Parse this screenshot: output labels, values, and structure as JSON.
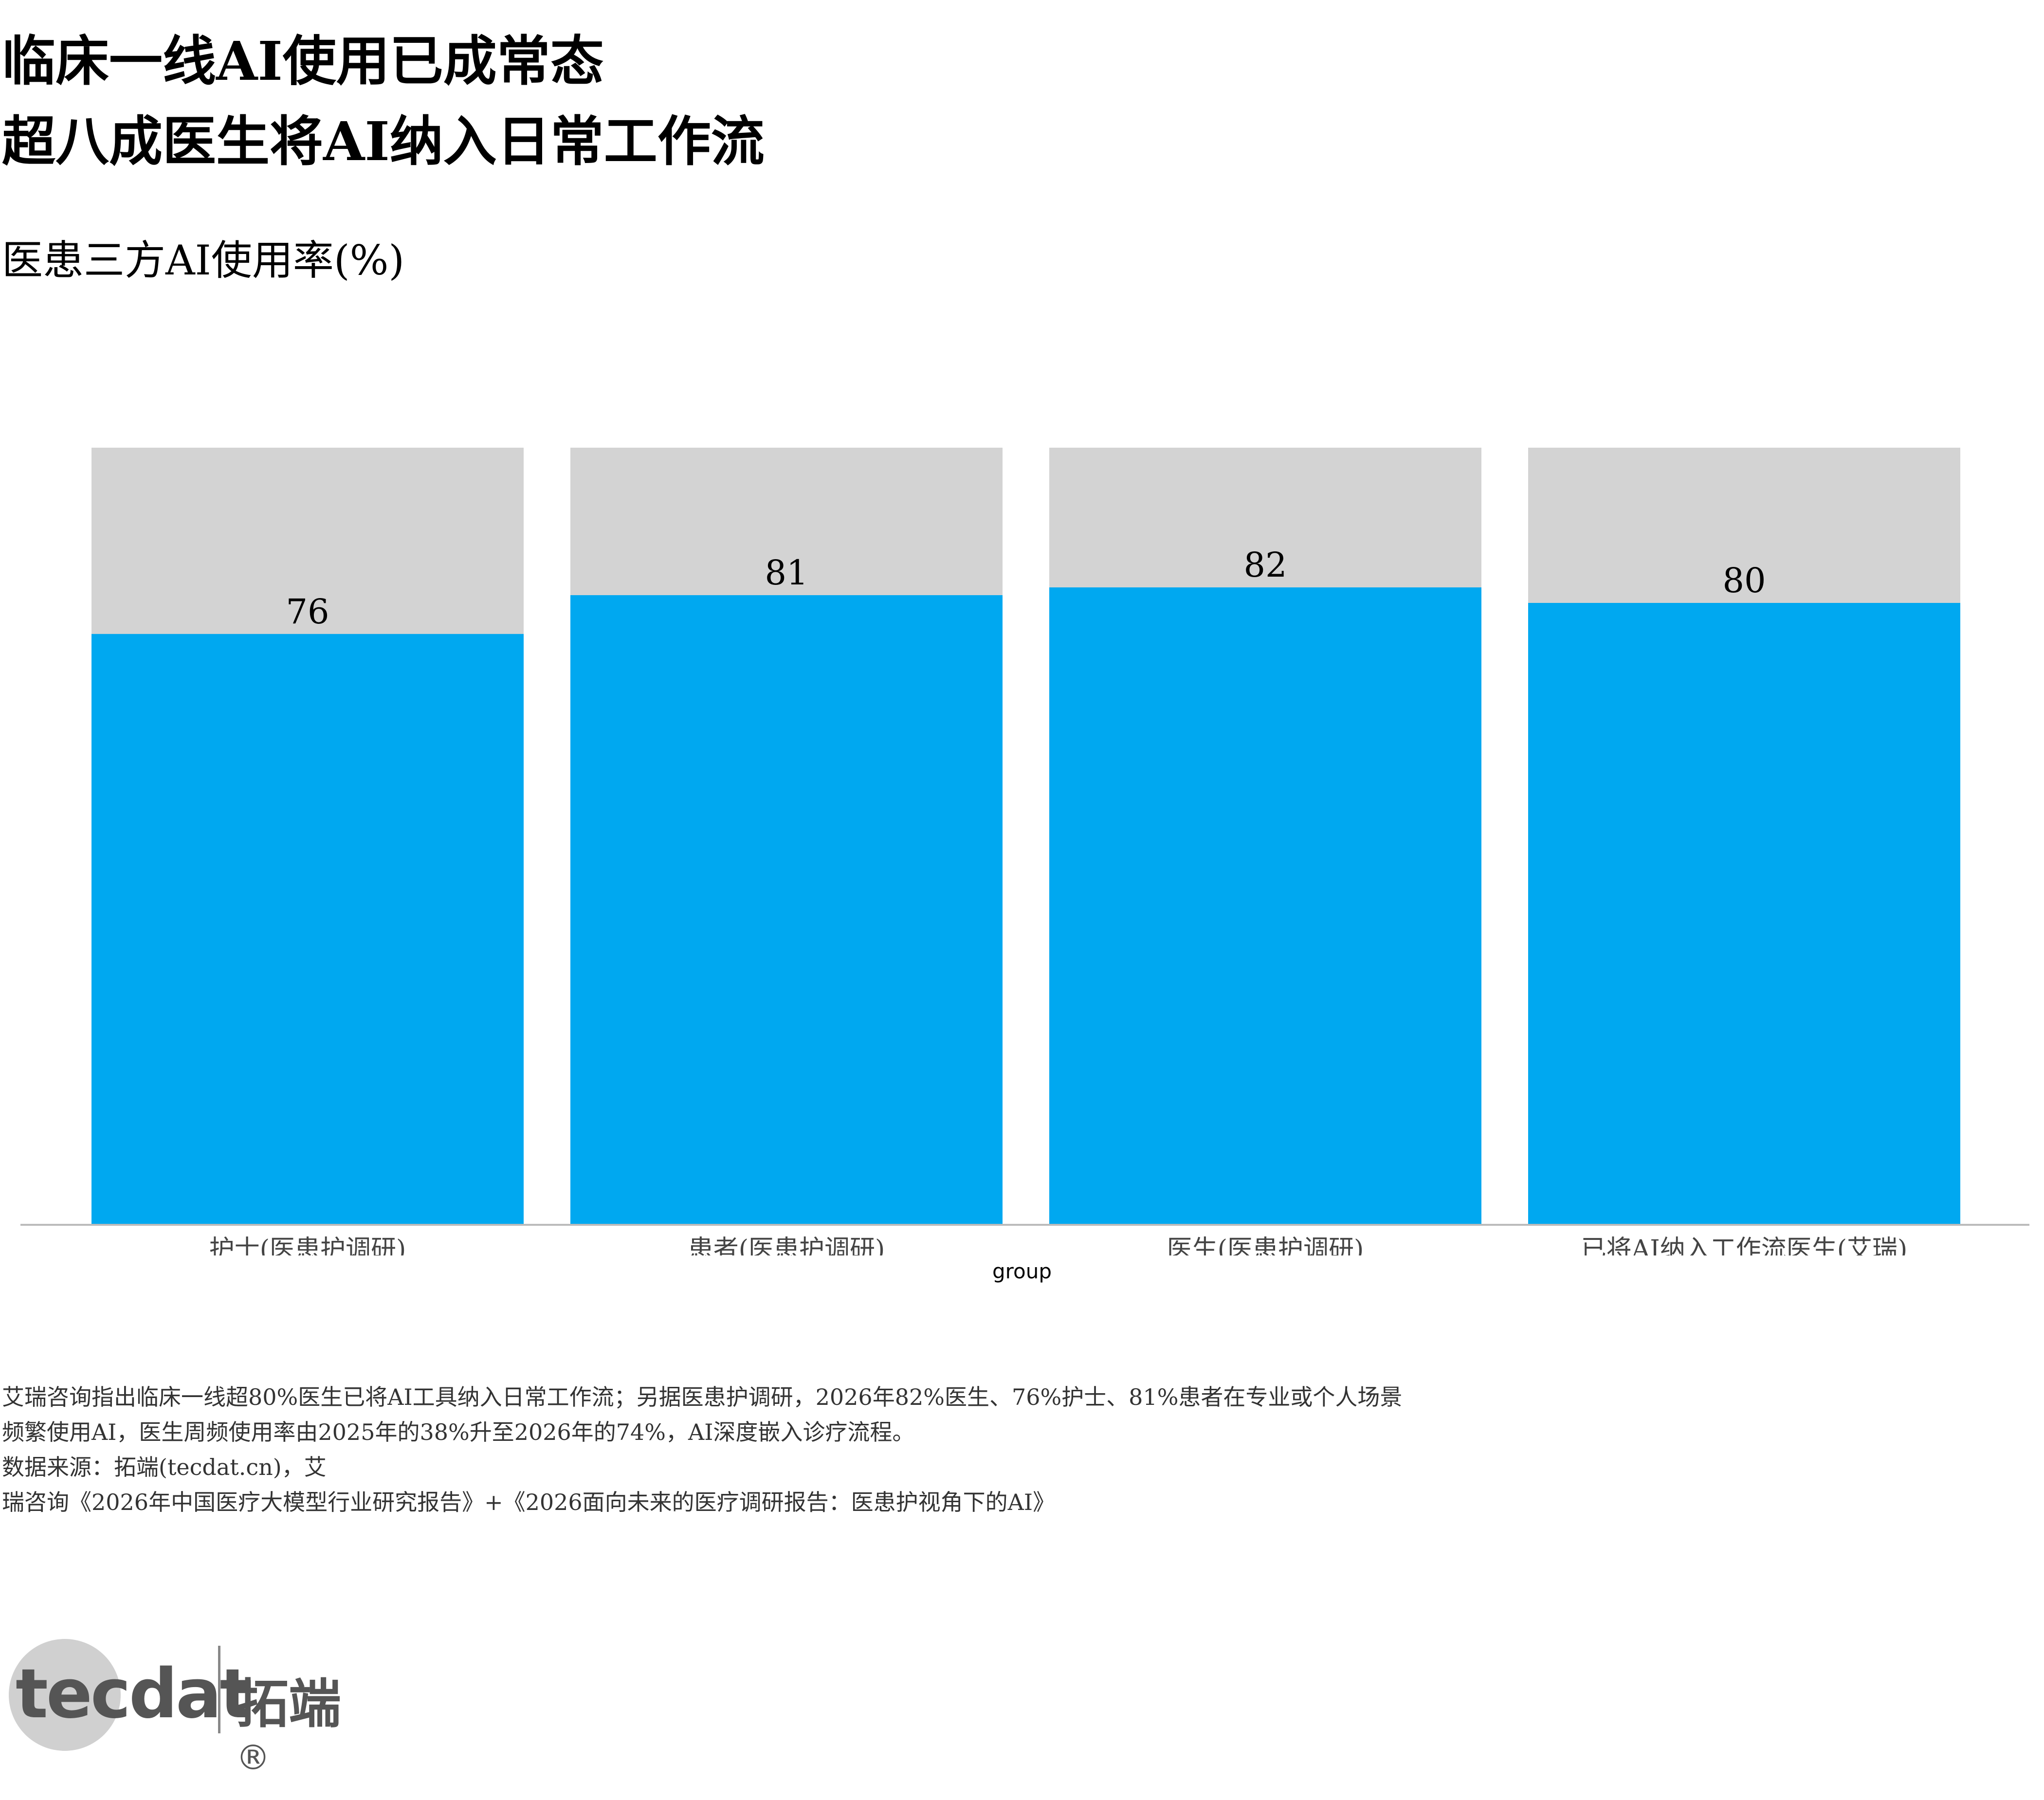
{
  "header": {
    "title_line1": "临床一线AI使用已成常态",
    "title_line2": "超八成医生将AI纳入日常工作流"
  },
  "chart_data": {
    "type": "bar",
    "subtitle": "医患三方AI使用率(%)",
    "categories": [
      "护士(医患护调研)",
      "患者(医患护调研)",
      "医生(医患护调研)",
      "已将AI纳入工作流医生(艾瑞)"
    ],
    "values": [
      76,
      81,
      82,
      80
    ],
    "background_total": 100,
    "xlabel": "group",
    "ylabel": "",
    "ylim": [
      0,
      100
    ],
    "grid": false,
    "legend": "none",
    "colors": {
      "bar": "#00a8f0",
      "track": "#d3d3d3",
      "axis": "#bbbbbb"
    }
  },
  "notes": {
    "line1": "艾瑞咨询指出临床一线超80%医生已将AI工具纳入日常工作流；另据医患护调研，2026年82%医生、76%护士、81%患者在专业或个人场景",
    "line2": "频繁使用AI，医生周频使用率由2025年的38%升至2026年的74%，AI深度嵌入诊疗流程。",
    "line3": "数据来源：拓端(tecdat.cn)，艾",
    "line4": "瑞咨询《2026年中国医疗大模型行业研究报告》+《2026面向未来的医疗调研报告：医患护视角下的AI》"
  },
  "logo": {
    "word": "tecdat",
    "cn": "拓端",
    "mark": "®"
  }
}
